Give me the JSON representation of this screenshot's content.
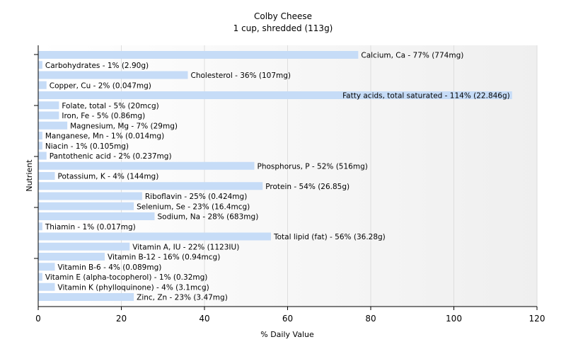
{
  "chart_data": {
    "type": "bar",
    "orientation": "horizontal",
    "title": "Colby Cheese",
    "subtitle": "1 cup, shredded (113g)",
    "xlabel": "% Daily Value",
    "ylabel": "Nutrient",
    "xlim": [
      0,
      120
    ],
    "xticks": [
      "0",
      "20",
      "40",
      "60",
      "80",
      "100",
      "120"
    ],
    "grid": true,
    "bar_color": "#c6dcf7",
    "categories": [
      "Calcium, Ca",
      "Carbohydrates",
      "Cholesterol",
      "Copper, Cu",
      "Fatty acids, total saturated",
      "Folate, total",
      "Iron, Fe",
      "Magnesium, Mg",
      "Manganese, Mn",
      "Niacin",
      "Pantothenic acid",
      "Phosphorus, P",
      "Potassium, K",
      "Protein",
      "Riboflavin",
      "Selenium, Se",
      "Sodium, Na",
      "Thiamin",
      "Total lipid (fat)",
      "Vitamin A, IU",
      "Vitamin B-12",
      "Vitamin B-6",
      "Vitamin E (alpha-tocopherol)",
      "Vitamin K (phylloquinone)",
      "Zinc, Zn"
    ],
    "values": [
      77,
      1,
      36,
      2,
      114,
      5,
      5,
      7,
      1,
      1,
      2,
      52,
      4,
      54,
      25,
      23,
      28,
      1,
      56,
      22,
      16,
      4,
      1,
      4,
      23
    ],
    "labels": [
      "Calcium, Ca - 77% (774mg)",
      "Carbohydrates - 1% (2.90g)",
      "Cholesterol - 36% (107mg)",
      "Copper, Cu - 2% (0.047mg)",
      "Fatty acids, total saturated - 114% (22.846g)",
      "Folate, total - 5% (20mcg)",
      "Iron, Fe - 5% (0.86mg)",
      "Magnesium, Mg - 7% (29mg)",
      "Manganese, Mn - 1% (0.014mg)",
      "Niacin - 1% (0.105mg)",
      "Pantothenic acid - 2% (0.237mg)",
      "Phosphorus, P - 52% (516mg)",
      "Potassium, K - 4% (144mg)",
      "Protein - 54% (26.85g)",
      "Riboflavin - 25% (0.424mg)",
      "Selenium, Se - 23% (16.4mcg)",
      "Sodium, Na - 28% (683mg)",
      "Thiamin - 1% (0.017mg)",
      "Total lipid (fat) - 56% (36.28g)",
      "Vitamin A, IU - 22% (1123IU)",
      "Vitamin B-12 - 16% (0.94mcg)",
      "Vitamin B-6 - 4% (0.089mg)",
      "Vitamin E (alpha-tocopherol) - 1% (0.32mg)",
      "Vitamin K (phylloquinone) - 4% (3.1mcg)",
      "Zinc, Zn - 23% (3.47mg)"
    ]
  }
}
